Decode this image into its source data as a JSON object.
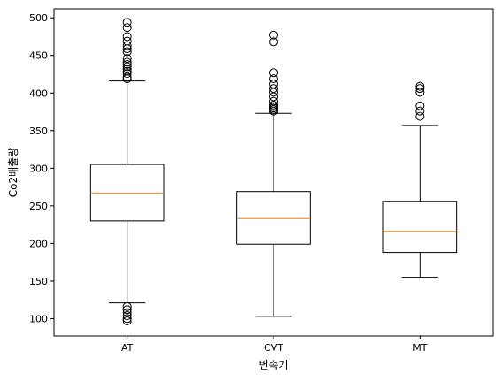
{
  "chart_data": {
    "type": "boxplot",
    "title": "",
    "xlabel": "변속기",
    "ylabel": "Co2배출량",
    "ylim": [
      77,
      512
    ],
    "yticks": [
      100,
      150,
      200,
      250,
      300,
      350,
      400,
      450,
      500
    ],
    "grid": false,
    "categories": [
      "AT",
      "CVT",
      "MT"
    ],
    "boxes": [
      {
        "category": "AT",
        "whisker_low": 121,
        "q1": 230,
        "median": 267,
        "q3": 305,
        "whisker_high": 416,
        "outliers": [
          419,
          421,
          426,
          429,
          432,
          435,
          438,
          441,
          446,
          455,
          459,
          463,
          469,
          475,
          487,
          494,
          116,
          112,
          108,
          104,
          100,
          97
        ]
      },
      {
        "category": "CVT",
        "whisker_low": 103,
        "q1": 199,
        "median": 233,
        "q3": 269,
        "whisker_high": 373,
        "outliers": [
          376,
          378,
          380,
          382,
          384,
          389,
          395,
          401,
          406,
          412,
          419,
          427,
          468,
          477
        ]
      },
      {
        "category": "MT",
        "whisker_low": 155,
        "q1": 188,
        "median": 216,
        "q3": 256,
        "whisker_high": 357,
        "outliers": [
          369,
          376,
          383,
          401,
          406,
          409
        ]
      }
    ],
    "colors": {
      "box": "#000000",
      "median": "#ff7f0e",
      "outlier": "#000000"
    }
  }
}
